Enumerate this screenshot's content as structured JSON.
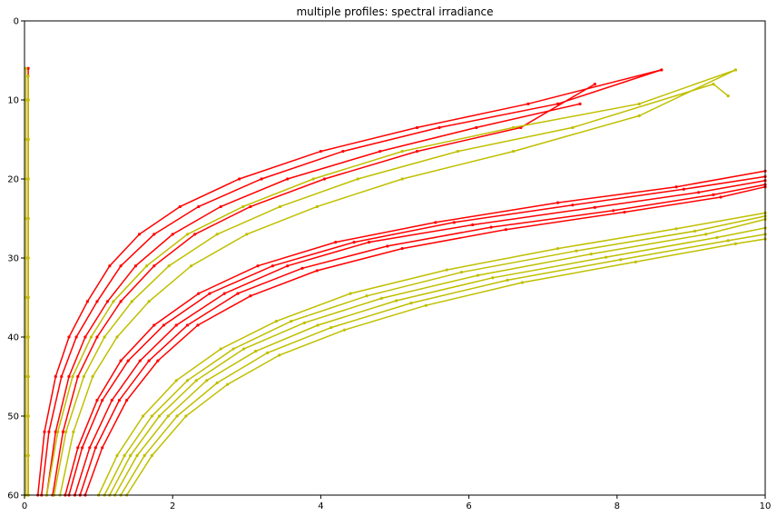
{
  "chart_data": {
    "type": "line",
    "title": "multiple profiles: spectral irradiance",
    "xlabel": "",
    "ylabel": "",
    "xlim": [
      0,
      10
    ],
    "ylim": [
      60,
      0
    ],
    "y_inverted": true,
    "grid": false,
    "xticks": [
      "0",
      "2",
      "4",
      "6",
      "8",
      "10"
    ],
    "yticks": [
      "0",
      "10",
      "20",
      "30",
      "40",
      "50",
      "60"
    ],
    "colors": {
      "red": "#ff0000",
      "yellow": "#bfbf00"
    },
    "series": [
      {
        "color": "red",
        "x": [
          0.05,
          0.05,
          0.05,
          0.05,
          0.05,
          0.05,
          0.05,
          0.05,
          0.05,
          0.05,
          0.05,
          0.05
        ],
        "y": [
          6,
          10,
          15,
          20,
          25,
          30,
          35,
          40,
          45,
          50,
          55,
          60
        ]
      },
      {
        "color": "red",
        "x": [
          0.18,
          0.27,
          0.42,
          0.6,
          0.85,
          1.15,
          1.55,
          2.1,
          2.9,
          4.0,
          5.3,
          6.8,
          8.6
        ],
        "y": [
          60,
          52,
          45,
          40,
          35.5,
          31,
          27,
          23.5,
          20,
          16.5,
          13.5,
          10.5,
          6.2
        ]
      },
      {
        "color": "red",
        "x": [
          0.23,
          0.33,
          0.5,
          0.7,
          0.98,
          1.3,
          1.75,
          2.35,
          3.2,
          4.3,
          5.6,
          7.2,
          8.6
        ],
        "y": [
          60,
          52,
          45,
          40,
          35.5,
          31,
          27,
          23.5,
          20,
          16.5,
          13.5,
          10.5,
          6.2
        ]
      },
      {
        "color": "red",
        "x": [
          0.3,
          0.42,
          0.6,
          0.82,
          1.12,
          1.5,
          2.0,
          2.65,
          3.55,
          4.8,
          6.1,
          7.5
        ],
        "y": [
          60,
          52,
          45,
          40,
          35.5,
          31,
          27,
          23.5,
          20,
          16.5,
          13.5,
          10.5
        ]
      },
      {
        "color": "red",
        "x": [
          0.38,
          0.52,
          0.72,
          0.98,
          1.3,
          1.75,
          2.3,
          3.05,
          4.05,
          5.3,
          6.7,
          7.7
        ],
        "y": [
          60,
          52,
          45,
          40,
          35.5,
          31,
          27,
          23.5,
          20,
          16.5,
          13.5,
          8.0
        ]
      },
      {
        "color": "red",
        "x": [
          0.55,
          0.72,
          0.98,
          1.3,
          1.75,
          2.35,
          3.15,
          4.2,
          5.55,
          7.2,
          8.8,
          10.0
        ],
        "y": [
          60,
          54,
          48,
          43,
          38.5,
          34.5,
          31,
          28,
          25.5,
          23,
          21,
          19.0
        ]
      },
      {
        "color": "red",
        "x": [
          0.6,
          0.78,
          1.05,
          1.4,
          1.88,
          2.5,
          3.35,
          4.45,
          5.8,
          7.4,
          8.9,
          10.0
        ],
        "y": [
          60,
          54,
          48,
          43,
          38.5,
          34.5,
          31,
          28,
          25.5,
          23.3,
          21.3,
          19.7
        ]
      },
      {
        "color": "red",
        "x": [
          0.68,
          0.88,
          1.18,
          1.56,
          2.05,
          2.7,
          3.55,
          4.65,
          6.05,
          7.7,
          9.1,
          10.0
        ],
        "y": [
          60,
          54,
          48,
          43,
          38.5,
          34.5,
          31,
          28,
          25.8,
          23.6,
          21.7,
          20.2
        ]
      },
      {
        "color": "red",
        "x": [
          0.75,
          0.96,
          1.28,
          1.68,
          2.2,
          2.88,
          3.75,
          4.9,
          6.3,
          7.95,
          9.3,
          10.0
        ],
        "y": [
          60,
          54,
          48,
          43,
          38.5,
          34.5,
          31.3,
          28.5,
          26.1,
          24.0,
          22.0,
          20.7
        ]
      },
      {
        "color": "red",
        "x": [
          0.82,
          1.05,
          1.38,
          1.8,
          2.34,
          3.05,
          3.95,
          5.1,
          6.5,
          8.1,
          9.4,
          10.0
        ],
        "y": [
          60,
          54,
          48,
          43,
          38.5,
          34.8,
          31.6,
          28.8,
          26.4,
          24.2,
          22.3,
          21.0
        ]
      },
      {
        "color": "yellow",
        "x": [
          0.02,
          0.02,
          0.02,
          0.02,
          0.02,
          0.02,
          0.02,
          0.02,
          0.02,
          0.02,
          0.02,
          0.02
        ],
        "y": [
          6,
          10,
          15,
          20,
          25,
          30,
          35,
          40,
          45,
          50,
          55,
          60
        ]
      },
      {
        "color": "yellow",
        "x": [
          0.05,
          0.05,
          0.05,
          0.05,
          0.05,
          0.05,
          0.05,
          0.05,
          0.05,
          0.05,
          0.05,
          0.05
        ],
        "y": [
          7,
          10,
          15,
          20,
          25,
          30,
          35,
          40,
          45,
          50,
          55,
          60
        ]
      },
      {
        "color": "yellow",
        "x": [
          0.3,
          0.45,
          0.65,
          0.9,
          1.2,
          1.65,
          2.2,
          2.95,
          3.9,
          5.1,
          6.6,
          8.3,
          9.6
        ],
        "y": [
          60,
          52,
          45,
          40,
          35.5,
          31,
          27,
          23.5,
          20,
          16.5,
          13.5,
          10.5,
          6.2
        ]
      },
      {
        "color": "yellow",
        "x": [
          0.4,
          0.56,
          0.8,
          1.08,
          1.45,
          1.95,
          2.6,
          3.45,
          4.5,
          5.85,
          7.4,
          9.3,
          9.5
        ],
        "y": [
          60,
          52,
          45,
          40,
          35.5,
          31,
          27,
          23.5,
          20,
          16.5,
          13.5,
          8.0,
          9.5
        ]
      },
      {
        "color": "yellow",
        "x": [
          0.48,
          0.66,
          0.92,
          1.25,
          1.68,
          2.25,
          3.0,
          3.95,
          5.1,
          6.6,
          8.3,
          9.6
        ],
        "y": [
          60,
          52,
          45,
          40,
          35.5,
          31,
          27,
          23.5,
          20,
          16.5,
          12.0,
          6.2
        ]
      },
      {
        "color": "yellow",
        "x": [
          1.0,
          1.25,
          1.6,
          2.05,
          2.65,
          3.4,
          4.4,
          5.7,
          7.2,
          8.8,
          10.0
        ],
        "y": [
          60,
          55,
          50,
          45.5,
          41.5,
          38,
          34.5,
          31.5,
          28.8,
          26.3,
          24.3
        ]
      },
      {
        "color": "yellow",
        "x": [
          1.08,
          1.35,
          1.72,
          2.2,
          2.82,
          3.6,
          4.62,
          5.9,
          7.45,
          9.05,
          10.0
        ],
        "y": [
          60,
          55,
          50,
          45.5,
          41.5,
          38,
          34.8,
          31.8,
          29.1,
          26.6,
          24.7
        ]
      },
      {
        "color": "yellow",
        "x": [
          1.15,
          1.43,
          1.82,
          2.32,
          2.96,
          3.78,
          4.82,
          6.12,
          7.65,
          9.2,
          10.0
        ],
        "y": [
          60,
          55,
          50,
          45.5,
          41.5,
          38.2,
          35.1,
          32.2,
          29.5,
          27.0,
          25.1
        ]
      },
      {
        "color": "yellow",
        "x": [
          1.22,
          1.52,
          1.94,
          2.46,
          3.12,
          3.96,
          5.02,
          6.32,
          7.85,
          9.35,
          10.0
        ],
        "y": [
          60,
          55,
          50,
          45.5,
          41.8,
          38.5,
          35.4,
          32.5,
          29.9,
          27.4,
          26.2
        ]
      },
      {
        "color": "yellow",
        "x": [
          1.3,
          1.62,
          2.06,
          2.6,
          3.28,
          4.14,
          5.22,
          6.52,
          8.05,
          9.5,
          10.0
        ],
        "y": [
          60,
          55,
          50,
          45.8,
          42.0,
          38.8,
          35.7,
          32.8,
          30.2,
          27.8,
          27.0
        ]
      },
      {
        "color": "yellow",
        "x": [
          1.38,
          1.72,
          2.18,
          2.74,
          3.44,
          4.32,
          5.42,
          6.72,
          8.25,
          9.6,
          10.0
        ],
        "y": [
          60,
          55,
          50,
          46.0,
          42.3,
          39.1,
          36.0,
          33.1,
          30.5,
          28.2,
          27.6
        ]
      }
    ]
  }
}
